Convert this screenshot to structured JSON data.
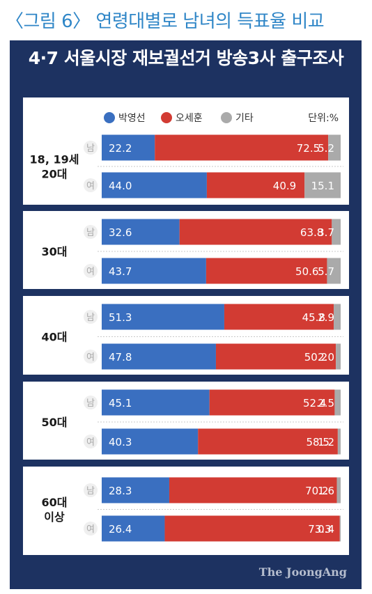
{
  "caption": "〈그림 6〉 연령대별로 남녀의 득표율 비교",
  "brand": "The JoongAng",
  "chart_data": {
    "type": "bar",
    "stacked": true,
    "orientation": "horizontal",
    "title": "4·7 서울시장 재보궐선거 방송3사 출구조사",
    "unit_label": "단위:%",
    "series": [
      {
        "name": "박영선",
        "color": "#3a6fc0"
      },
      {
        "name": "오세훈",
        "color": "#d23b33"
      },
      {
        "name": "기타",
        "color": "#aaaaaa"
      }
    ],
    "groups": [
      {
        "label": [
          "18, 19세",
          "20대"
        ],
        "rows": [
          {
            "gender": "남",
            "values": [
              22.2,
              72.5,
              5.2
            ]
          },
          {
            "gender": "여",
            "values": [
              44.0,
              40.9,
              15.1
            ]
          }
        ]
      },
      {
        "label": [
          "30대"
        ],
        "rows": [
          {
            "gender": "남",
            "values": [
              32.6,
              63.8,
              3.7
            ]
          },
          {
            "gender": "여",
            "values": [
              43.7,
              50.6,
              5.7
            ]
          }
        ]
      },
      {
        "label": [
          "40대"
        ],
        "rows": [
          {
            "gender": "남",
            "values": [
              51.3,
              45.8,
              2.9
            ]
          },
          {
            "gender": "여",
            "values": [
              47.8,
              50.2,
              2.0
            ]
          }
        ]
      },
      {
        "label": [
          "50대"
        ],
        "rows": [
          {
            "gender": "남",
            "values": [
              45.1,
              52.4,
              2.5
            ]
          },
          {
            "gender": "여",
            "values": [
              40.3,
              58.5,
              1.2
            ]
          }
        ]
      },
      {
        "label": [
          "60대",
          "이상"
        ],
        "rows": [
          {
            "gender": "남",
            "values": [
              28.3,
              70.2,
              1.6
            ]
          },
          {
            "gender": "여",
            "values": [
              26.4,
              73.3,
              0.4
            ]
          }
        ]
      }
    ]
  }
}
